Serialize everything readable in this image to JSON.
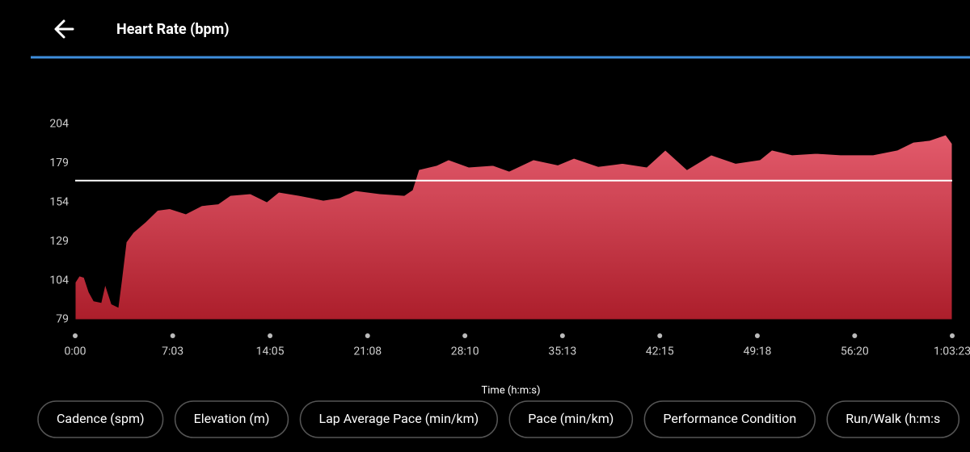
{
  "header": {
    "title": "Heart Rate (bpm)"
  },
  "chart_data": {
    "type": "area",
    "x": [
      0,
      18,
      39,
      60,
      81,
      112,
      130,
      158,
      186,
      200,
      221,
      252,
      305,
      357,
      410,
      480,
      550,
      620,
      673,
      760,
      831,
      883,
      971,
      1076,
      1146,
      1216,
      1321,
      1427,
      1462,
      1490,
      1567,
      1619,
      1707,
      1812,
      1882,
      1987,
      2093,
      2163,
      2268,
      2373,
      2478,
      2559,
      2653,
      2758,
      2864,
      2969,
      3021,
      3109,
      3214,
      3319,
      3460,
      3565,
      3635,
      3705,
      3775,
      3803
    ],
    "values": [
      102.8,
      107,
      106,
      96.6,
      91,
      90,
      101.7,
      89,
      87,
      103,
      128.6,
      134.8,
      141.5,
      149,
      150,
      146.7,
      152,
      153,
      158.5,
      159.6,
      154.4,
      160.6,
      158.5,
      155.4,
      157,
      161.6,
      159.6,
      158.5,
      162,
      175,
      177.7,
      181.3,
      176.6,
      177.7,
      174,
      181.3,
      178,
      182.3,
      177,
      179,
      176.6,
      187.5,
      175,
      184.4,
      179,
      181.3,
      187.5,
      184.4,
      185.4,
      184.4,
      184.4,
      187.5,
      192.6,
      193.7,
      197.3,
      191.6
    ],
    "fill_gradient": [
      "#e35b6c",
      "#ac1e2b"
    ],
    "reference_line": 168,
    "reference_color": "#ffffff",
    "xlim": [
      0,
      3803
    ],
    "ylim": [
      79,
      204
    ],
    "xticks": [
      {
        "value": 0,
        "label": "0:00"
      },
      {
        "value": 423,
        "label": "7:03"
      },
      {
        "value": 845,
        "label": "14:05"
      },
      {
        "value": 1268,
        "label": "21:08"
      },
      {
        "value": 1690,
        "label": "28:10"
      },
      {
        "value": 2113,
        "label": "35:13"
      },
      {
        "value": 2535,
        "label": "42:15"
      },
      {
        "value": 2958,
        "label": "49:18"
      },
      {
        "value": 3380,
        "label": "56:20"
      },
      {
        "value": 3803,
        "label": "1:03:23"
      }
    ],
    "yticks": [
      79,
      104,
      129,
      154,
      179,
      204
    ],
    "x_label": "Time (h:m:s)"
  },
  "buttons": [
    "Cadence (spm)",
    "Elevation (m)",
    "Lap Average Pace (min/km)",
    "Pace (min/km)",
    "Performance Condition",
    "Run/Walk (h:m:s"
  ]
}
